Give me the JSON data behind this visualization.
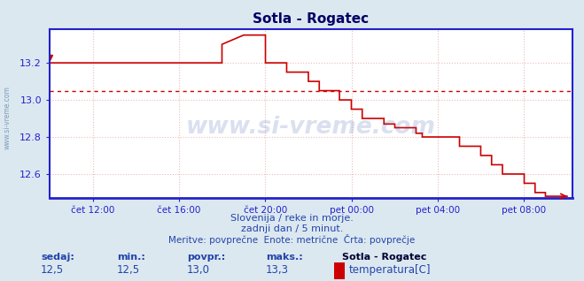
{
  "title": "Sotla - Rogatec",
  "bg_color": "#dce8f0",
  "plot_bg_color": "#ffffff",
  "line_color": "#cc0000",
  "avg_line_color": "#cc0000",
  "avg_value": 13.05,
  "ylim": [
    12.47,
    13.38
  ],
  "yticks": [
    12.6,
    12.8,
    13.0,
    13.2
  ],
  "grid_color": "#f0b8b8",
  "grid_style": "dotted",
  "axis_color": "#2222cc",
  "tick_color": "#2222cc",
  "title_color": "#000066",
  "subtitle_color": "#2244aa",
  "subtitle1": "Slovenija / reke in morje.",
  "subtitle2": "zadnji dan / 5 minut.",
  "subtitle3": "Meritve: povprečne  Enote: metrične  Črta: povprečje",
  "footer_label1": "sedaj:",
  "footer_label2": "min.:",
  "footer_label3": "povpr.:",
  "footer_label4": "maks.:",
  "footer_val1": "12,5",
  "footer_val2": "12,5",
  "footer_val3": "13,0",
  "footer_val4": "13,3",
  "footer_series": "Sotla - Rogatec",
  "footer_legend": "temperatura[C]",
  "watermark": "www.si-vreme.com",
  "sidewatermark": "www.si-vreme.com",
  "xtick_labels": [
    "čet 12:00",
    "čet 16:00",
    "čet 20:00",
    "pet 00:00",
    "pet 04:00",
    "pet 08:00"
  ],
  "xtick_positions": [
    0.0833,
    0.25,
    0.4167,
    0.5833,
    0.75,
    0.9167
  ]
}
